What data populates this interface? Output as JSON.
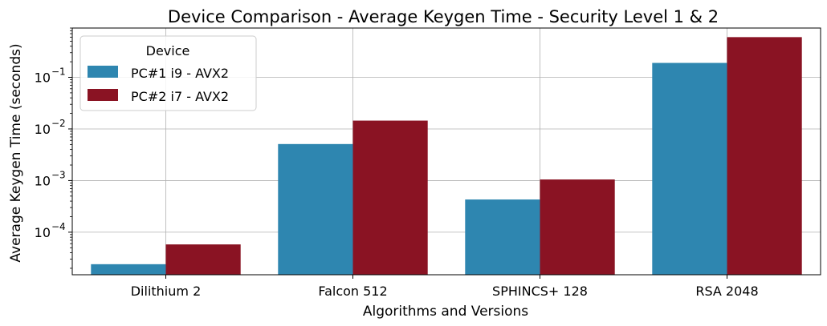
{
  "colors": {
    "series1": "#2e86b0",
    "series2": "#8a1323",
    "grid": "#b0b0b0",
    "axis": "#000000"
  },
  "chart_data": {
    "type": "bar",
    "title": "Device Comparison - Average Keygen Time - Security Level 1 & 2",
    "xlabel": "Algorithms and Versions",
    "ylabel": "Average Keygen Time (seconds)",
    "yscale": "log",
    "ylim": [
      1.5e-05,
      0.9
    ],
    "yticks": [
      {
        "value": 0.0001,
        "mantissa": "10",
        "exp": "−4"
      },
      {
        "value": 0.001,
        "mantissa": "10",
        "exp": "−3"
      },
      {
        "value": 0.01,
        "mantissa": "10",
        "exp": "−2"
      },
      {
        "value": 0.1,
        "mantissa": "10",
        "exp": "−1"
      }
    ],
    "grid": true,
    "legend": {
      "title": "Device",
      "placement": "top-left"
    },
    "categories": [
      "Dilithium 2",
      "Falcon 512",
      "SPHINCS+ 128",
      "RSA 2048"
    ],
    "series": [
      {
        "name": "PC#1 i9 - AVX2",
        "values": [
          2.4e-05,
          0.0051,
          0.00043,
          0.19
        ]
      },
      {
        "name": "PC#2 i7 - AVX2",
        "values": [
          5.8e-05,
          0.0145,
          0.00105,
          0.6
        ]
      }
    ]
  }
}
